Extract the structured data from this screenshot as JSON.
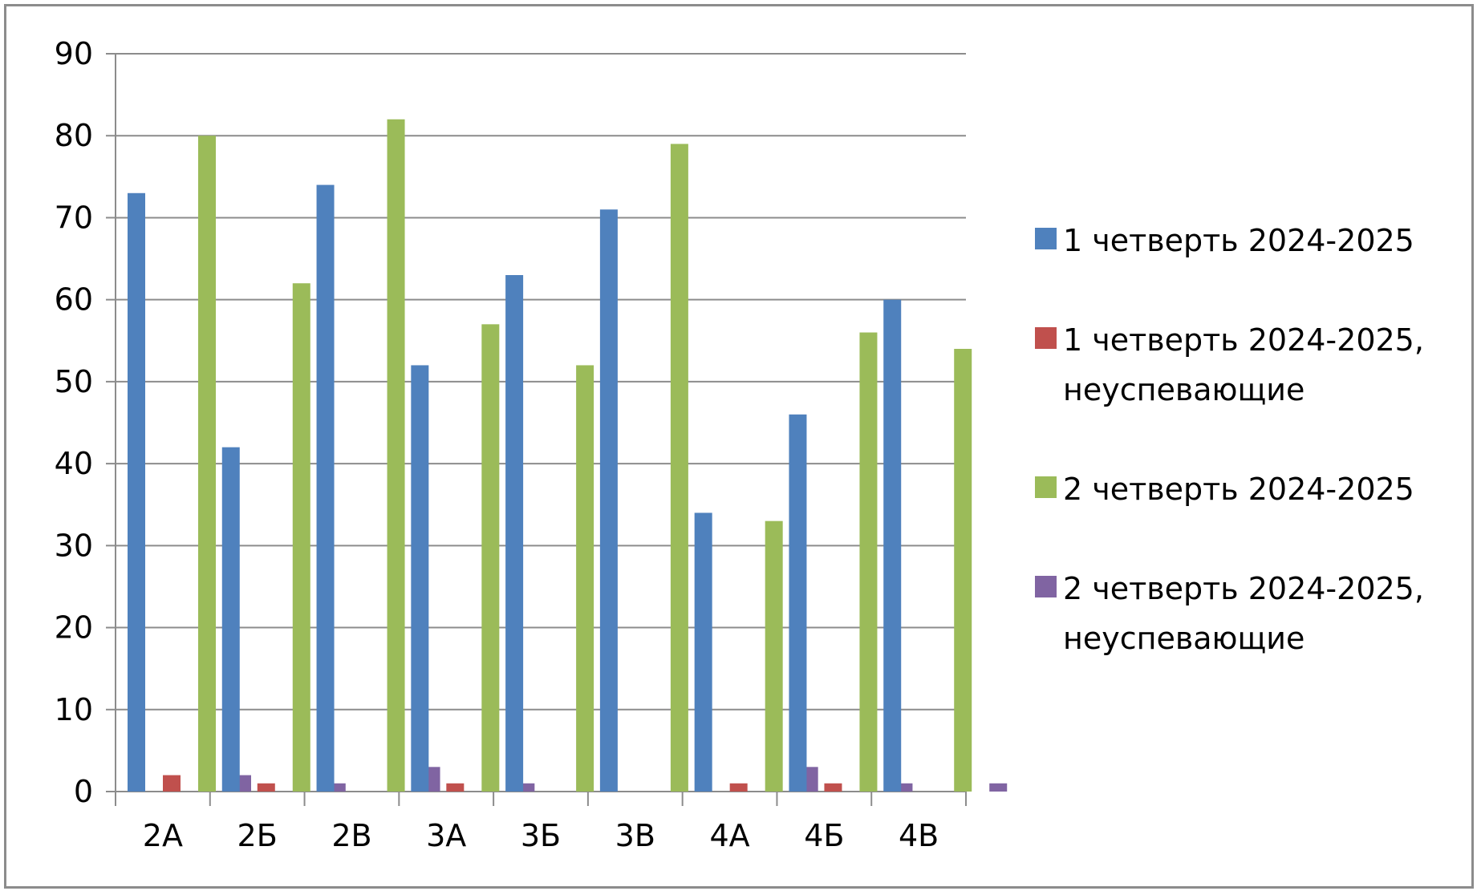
{
  "chart_data": {
    "type": "bar",
    "categories": [
      "2А",
      "2Б",
      "2В",
      "3А",
      "3Б",
      "3В",
      "4А",
      "4Б",
      "4В"
    ],
    "series": [
      {
        "name": "1 четверть 2024-2025",
        "color": "#4f81bd",
        "values": [
          73,
          42,
          74,
          52,
          63,
          71,
          34,
          46,
          60
        ]
      },
      {
        "name": "1 четверть 2024-2025, неуспевающие",
        "color": "#c0504d",
        "values": [
          2,
          1,
          0,
          1,
          0,
          0,
          1,
          1,
          0
        ]
      },
      {
        "name": "2 четверть 2024-2025",
        "color": "#9bbb59",
        "values": [
          80,
          62,
          82,
          57,
          52,
          79,
          33,
          56,
          54
        ]
      },
      {
        "name": "2 четверть 2024-2025, неуспевающие",
        "color": "#8064a2",
        "values": [
          2,
          1,
          3,
          1,
          0,
          0,
          3,
          1,
          1
        ]
      }
    ],
    "yticks": [
      "0",
      "10",
      "20",
      "30",
      "40",
      "50",
      "60",
      "70",
      "80",
      "90"
    ],
    "ylim": [
      0,
      90
    ],
    "grid": true,
    "legend_position": "right",
    "legend_lines": [
      [
        "1 четверть 2024-2025"
      ],
      [
        "1 четверть 2024-2025,",
        "неуспевающие"
      ],
      [
        "2 четверть 2024-2025"
      ],
      [
        "2 четверть 2024-2025,",
        "неуспевающие"
      ]
    ]
  }
}
